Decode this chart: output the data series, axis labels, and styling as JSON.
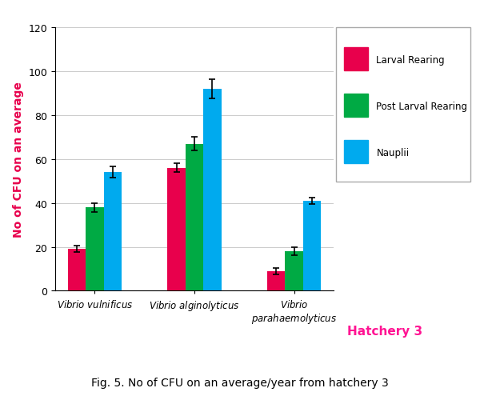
{
  "categories_line1": [
    "Vibrio vulnificus",
    "Vibrio alginolyticus",
    "Vibrio"
  ],
  "categories_line2": [
    "",
    "",
    "parahaemolyticus"
  ],
  "series": {
    "Larval Rearing": {
      "values": [
        19,
        56,
        9
      ],
      "errors": [
        1.5,
        2.0,
        1.5
      ],
      "color": "#E8004C"
    },
    "Post Larval Rearing": {
      "values": [
        38,
        67,
        18
      ],
      "errors": [
        2.0,
        3.0,
        2.0
      ],
      "color": "#00AA44"
    },
    "Nauplii": {
      "values": [
        54,
        92,
        41
      ],
      "errors": [
        2.5,
        4.5,
        1.5
      ],
      "color": "#00AAEE"
    }
  },
  "ylabel": "No of CFU on an average",
  "ylim": [
    0,
    120
  ],
  "yticks": [
    0,
    20,
    40,
    60,
    80,
    100,
    120
  ],
  "hatchery_text": "Hatchery 3",
  "hatchery_color": "#FF1493",
  "caption": "Fig. 5. No of CFU on an average/year from hatchery 3",
  "background_color": "#FFFFFF",
  "bar_width": 0.18,
  "legend_colors": [
    "#E8004C",
    "#00AA44",
    "#00AAEE"
  ],
  "legend_labels": [
    "Larval Rearing",
    "Post Larval Rearing",
    "Nauplii"
  ]
}
